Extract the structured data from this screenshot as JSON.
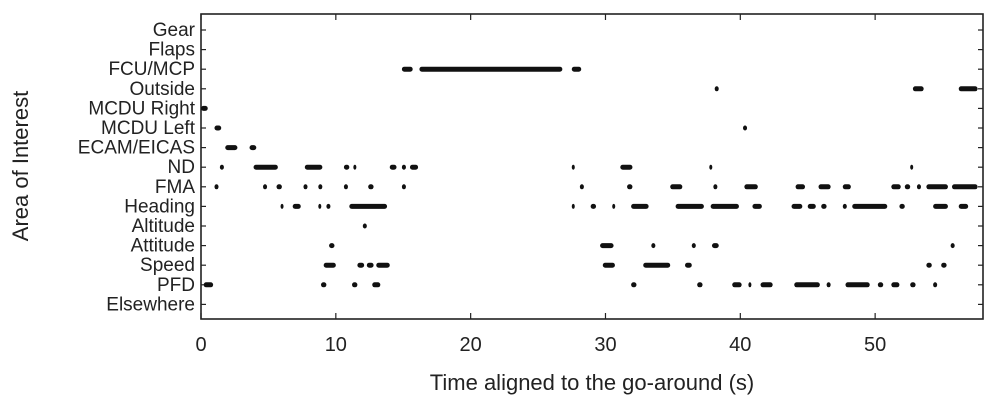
{
  "chart_data": {
    "type": "scatter",
    "title": "",
    "xlabel": "Time aligned to the go-around (s)",
    "ylabel": "Area of Interest",
    "xlim": [
      0,
      58
    ],
    "xticks": [
      0,
      10,
      20,
      30,
      40,
      50
    ],
    "grid": false,
    "legend": "none",
    "mark_color": "#111111",
    "categories": [
      "Gear",
      "Flaps",
      "FCU/MCP",
      "Outside",
      "MCDU Right",
      "MCDU Left",
      "ECAM/EICAS",
      "ND",
      "FMA",
      "Heading",
      "Altitude",
      "Attitude",
      "Speed",
      "PFD",
      "Elsewhere"
    ],
    "fixations": [
      {
        "category": "FCU/MCP",
        "intervals": [
          [
            14.9,
            15.7
          ],
          [
            16.2,
            26.8
          ],
          [
            27.5,
            28.2
          ]
        ]
      },
      {
        "category": "Outside",
        "intervals": [
          [
            38.1,
            38.4
          ],
          [
            52.8,
            53.6
          ],
          [
            56.2,
            57.6
          ]
        ]
      },
      {
        "category": "MCDU Right",
        "intervals": [
          [
            0.0,
            0.5
          ]
        ]
      },
      {
        "category": "MCDU Left",
        "intervals": [
          [
            1.0,
            1.5
          ],
          [
            40.2,
            40.5
          ]
        ]
      },
      {
        "category": "ECAM/EICAS",
        "intervals": [
          [
            1.8,
            2.7
          ],
          [
            3.6,
            4.1
          ]
        ]
      },
      {
        "category": "ND",
        "intervals": [
          [
            1.4,
            1.7
          ],
          [
            3.9,
            5.7
          ],
          [
            7.7,
            9.0
          ],
          [
            10.6,
            11.0
          ],
          [
            11.3,
            11.5
          ],
          [
            14.0,
            14.5
          ],
          [
            14.9,
            15.2
          ],
          [
            15.5,
            16.1
          ],
          [
            27.5,
            27.7
          ],
          [
            31.1,
            32.0
          ],
          [
            37.7,
            37.9
          ],
          [
            52.6,
            52.8
          ]
        ]
      },
      {
        "category": "FMA",
        "intervals": [
          [
            1.0,
            1.3
          ],
          [
            4.6,
            4.9
          ],
          [
            5.6,
            6.0
          ],
          [
            7.6,
            7.9
          ],
          [
            8.7,
            9.0
          ],
          [
            10.6,
            10.9
          ],
          [
            12.4,
            12.8
          ],
          [
            14.9,
            15.2
          ],
          [
            28.1,
            28.4
          ],
          [
            31.6,
            32.0
          ],
          [
            34.8,
            35.7
          ],
          [
            38.0,
            38.3
          ],
          [
            40.3,
            41.3
          ],
          [
            44.1,
            44.8
          ],
          [
            45.8,
            46.7
          ],
          [
            47.6,
            48.2
          ],
          [
            51.2,
            51.9
          ],
          [
            52.2,
            52.6
          ],
          [
            53.1,
            53.4
          ],
          [
            53.8,
            55.4
          ],
          [
            55.7,
            57.6
          ]
        ]
      },
      {
        "category": "Heading",
        "intervals": [
          [
            5.9,
            6.1
          ],
          [
            6.8,
            7.4
          ],
          [
            8.7,
            8.9
          ],
          [
            9.3,
            9.6
          ],
          [
            11.0,
            13.8
          ],
          [
            27.5,
            27.6
          ],
          [
            28.9,
            29.3
          ],
          [
            30.5,
            30.7
          ],
          [
            31.9,
            33.2
          ],
          [
            35.2,
            37.3
          ],
          [
            37.8,
            39.9
          ],
          [
            40.9,
            41.6
          ],
          [
            43.8,
            44.6
          ],
          [
            45.0,
            45.6
          ],
          [
            46.0,
            46.4
          ],
          [
            47.6,
            47.9
          ],
          [
            48.3,
            50.9
          ],
          [
            51.8,
            52.2
          ],
          [
            54.3,
            55.4
          ],
          [
            56.2,
            56.9
          ]
        ]
      },
      {
        "category": "Altitude",
        "intervals": [
          [
            12.0,
            12.3
          ]
        ]
      },
      {
        "category": "Attitude",
        "intervals": [
          [
            9.5,
            9.9
          ],
          [
            29.6,
            30.6
          ],
          [
            33.4,
            33.7
          ],
          [
            36.4,
            36.7
          ],
          [
            37.9,
            38.4
          ],
          [
            55.6,
            55.9
          ]
        ]
      },
      {
        "category": "Speed",
        "intervals": [
          [
            9.1,
            10.0
          ],
          [
            11.6,
            12.1
          ],
          [
            12.3,
            12.8
          ],
          [
            13.0,
            14.0
          ],
          [
            29.8,
            30.7
          ],
          [
            32.8,
            34.8
          ],
          [
            35.9,
            36.4
          ],
          [
            53.8,
            54.2
          ],
          [
            54.9,
            55.3
          ]
        ]
      },
      {
        "category": "PFD",
        "intervals": [
          [
            0.2,
            0.9
          ],
          [
            8.9,
            9.3
          ],
          [
            11.2,
            11.6
          ],
          [
            12.7,
            13.3
          ],
          [
            31.9,
            32.3
          ],
          [
            36.8,
            37.2
          ],
          [
            39.4,
            40.1
          ],
          [
            40.6,
            40.8
          ],
          [
            41.5,
            42.4
          ],
          [
            44.0,
            45.9
          ],
          [
            46.4,
            46.7
          ],
          [
            47.8,
            49.6
          ],
          [
            50.2,
            50.6
          ],
          [
            51.2,
            51.8
          ],
          [
            52.6,
            53.0
          ],
          [
            54.3,
            54.6
          ]
        ]
      },
      {
        "category": "Elsewhere",
        "intervals": []
      }
    ]
  }
}
